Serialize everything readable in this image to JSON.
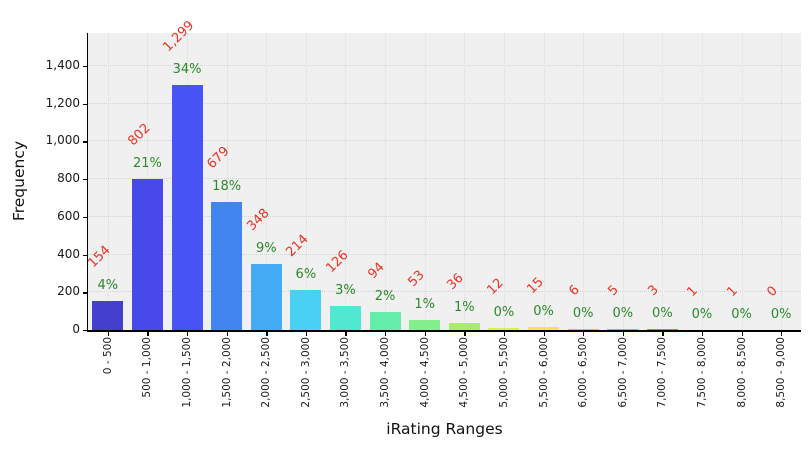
{
  "chart_data": {
    "type": "bar",
    "title": "",
    "xlabel": "iRating Ranges",
    "ylabel": "Frequency",
    "categories": [
      "0 - 500",
      "500 - 1,000",
      "1,000 - 1,500",
      "1,500 - 2,000",
      "2,000 - 2,500",
      "2,500 - 3,000",
      "3,000 - 3,500",
      "3,500 - 4,000",
      "4,000 - 4,500",
      "4,500 - 5,000",
      "5,000 - 5,500",
      "5,500 - 6,000",
      "6,000 - 6,500",
      "6,500 - 7,000",
      "7,000 - 7,500",
      "7,500 - 8,000",
      "8,000 - 8,500",
      "8,500 - 9,000"
    ],
    "values": [
      154,
      802,
      1299,
      679,
      348,
      214,
      126,
      94,
      53,
      36,
      12,
      15,
      6,
      5,
      3,
      1,
      1,
      0
    ],
    "count_labels": [
      "154",
      "802",
      "1,299",
      "679",
      "348",
      "214",
      "126",
      "94",
      "53",
      "36",
      "12",
      "15",
      "6",
      "5",
      "3",
      "1",
      "1",
      "0"
    ],
    "pct_labels": [
      "4%",
      "21%",
      "34%",
      "18%",
      "9%",
      "6%",
      "3%",
      "2%",
      "1%",
      "1%",
      "0%",
      "0%",
      "0%",
      "0%",
      "0%",
      "0%",
      "0%",
      "0%"
    ],
    "bar_colors": [
      "#453fcd",
      "#4749ea",
      "#4754f3",
      "#4285f0",
      "#43aaf3",
      "#49d0f3",
      "#50e8d1",
      "#63eda9",
      "#85ee8d",
      "#abeb67",
      "#d9ef4e",
      "#f6e44a",
      "#f3b148",
      "#f0934e",
      "#ed6846",
      "#eb5a42",
      "#ea4e3d",
      "#e94237"
    ],
    "yticks": [
      0,
      200,
      400,
      600,
      800,
      1000,
      1200,
      1400
    ],
    "ytick_labels": [
      "0",
      "200",
      "400",
      "600",
      "800",
      "1,000",
      "1,200",
      "1,400"
    ],
    "ylim": [
      0,
      1575
    ],
    "grid": "dotted",
    "legend": "none",
    "colors": {
      "count_label": "#ea3323",
      "pct_label": "#2a8a2a",
      "plot_bg": "#f0f0f0",
      "figure_bg": "#ffffff",
      "axis": "#000000",
      "grid_h": "#d2d2d2",
      "grid_v": "#dcdcdc"
    }
  }
}
